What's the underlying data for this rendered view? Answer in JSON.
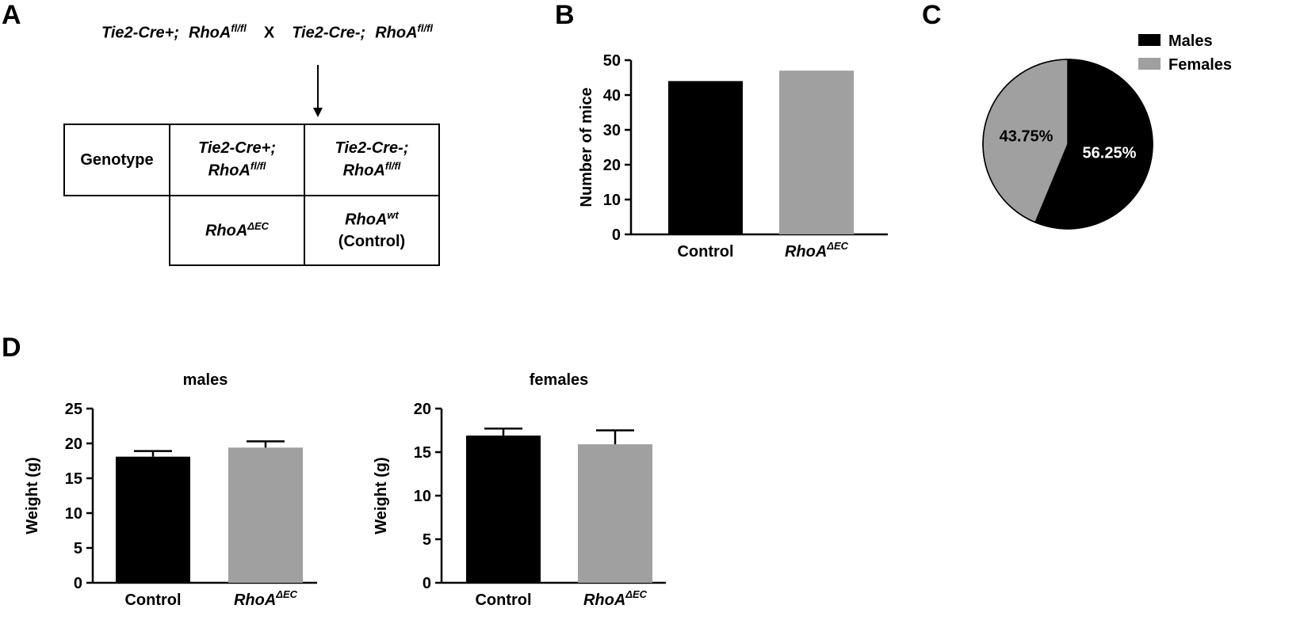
{
  "panel_labels": {
    "a": "A",
    "b": "B",
    "c": "C",
    "d": "D"
  },
  "cross": {
    "left_gene": "Tie2-Cre+;",
    "left_allele": "RhoA",
    "left_allele_sup": "fl/fl",
    "x": "X",
    "right_gene": "Tie2-Cre-;",
    "right_allele": "RhoA",
    "right_allele_sup": "fl/fl"
  },
  "genotype_table": {
    "header": "Genotype",
    "col1_gene": "Tie2-Cre+;",
    "col1_allele": "RhoA",
    "col1_allele_sup": "fl/fl",
    "col2_gene": "Tie2-Cre-;",
    "col2_allele": "RhoA",
    "col2_allele_sup": "fl/fl",
    "row2_col1": "RhoA",
    "row2_col1_sup": "ΔEC",
    "row2_col2": "RhoA",
    "row2_col2_sup": "wt",
    "row2_col2_note": "(Control)"
  },
  "colors": {
    "control": "#000000",
    "rhoa": "#a0a0a0"
  },
  "chart_data": [
    {
      "id": "B",
      "type": "bar",
      "title": "",
      "categories": [
        "Control",
        "RhoA"
      ],
      "category_sup": [
        "",
        "ΔEC"
      ],
      "values": [
        44,
        47
      ],
      "ylabel": "Number of mice",
      "xlabel": "",
      "ylim": [
        0,
        50
      ],
      "yticks": [
        "0",
        "10",
        "20",
        "30",
        "40",
        "50"
      ]
    },
    {
      "id": "C",
      "type": "pie",
      "labels": [
        "Males",
        "Females"
      ],
      "values": [
        56.25,
        43.75
      ],
      "value_labels": [
        "56.25%",
        "43.75%"
      ],
      "legend": [
        "Males",
        "Females"
      ],
      "legend_position": "top-right"
    },
    {
      "id": "D-males",
      "type": "bar",
      "title": "males",
      "categories": [
        "Control",
        "RhoA"
      ],
      "category_sup": [
        "",
        "ΔEC"
      ],
      "values": [
        18.1,
        19.4
      ],
      "errors": [
        0.8,
        0.9
      ],
      "ylabel": "Weight (g)",
      "xlabel": "",
      "ylim": [
        0,
        25
      ],
      "yticks": [
        "0",
        "5",
        "10",
        "15",
        "20",
        "25"
      ]
    },
    {
      "id": "D-females",
      "type": "bar",
      "title": "females",
      "categories": [
        "Control",
        "RhoA"
      ],
      "category_sup": [
        "",
        "ΔEC"
      ],
      "values": [
        16.9,
        15.9
      ],
      "errors": [
        0.8,
        1.6
      ],
      "ylabel": "Weight (g)",
      "xlabel": "",
      "ylim": [
        0,
        20
      ],
      "yticks": [
        "0",
        "5",
        "10",
        "15",
        "20"
      ]
    }
  ]
}
